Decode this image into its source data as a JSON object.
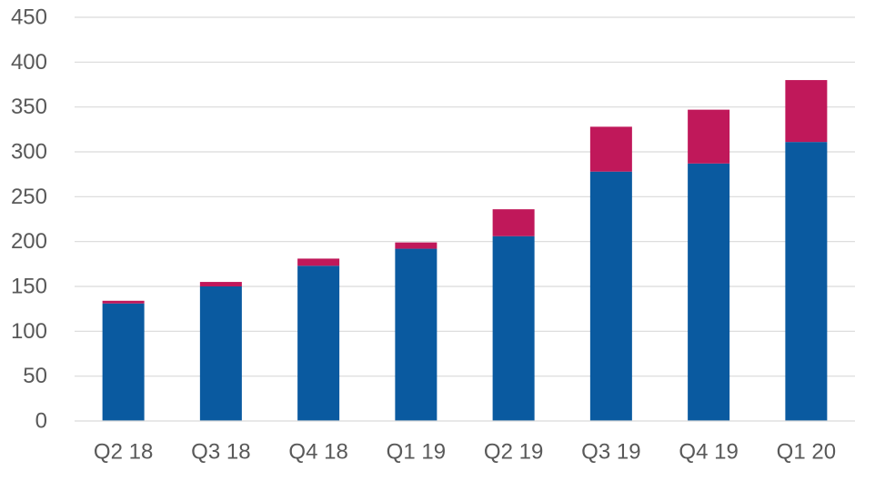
{
  "chart_data": {
    "type": "bar",
    "stacked": true,
    "title": "",
    "xlabel": "",
    "ylabel": "",
    "categories": [
      "Q2 18",
      "Q3 18",
      "Q4 18",
      "Q1 19",
      "Q2 19",
      "Q3 19",
      "Q4 19",
      "Q1 20"
    ],
    "series": [
      {
        "color": "#0a5aa0",
        "values": [
          131,
          150,
          173,
          192,
          206,
          278,
          287,
          311
        ]
      },
      {
        "color": "#c0185a",
        "values": [
          3,
          5,
          8,
          7,
          30,
          50,
          60,
          69
        ]
      }
    ],
    "ylim": [
      0,
      450
    ],
    "yticks": [
      0,
      50,
      100,
      150,
      200,
      250,
      300,
      350,
      400,
      450
    ],
    "grid": true,
    "legend": "none"
  }
}
